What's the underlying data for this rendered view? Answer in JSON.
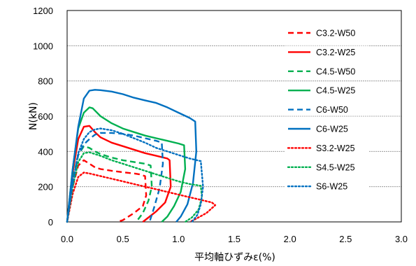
{
  "chart_data": {
    "type": "line",
    "xlabel": "平均軸ひずみε(%)",
    "ylabel": "N(kN)",
    "xlim": [
      0,
      3.0
    ],
    "ylim": [
      0,
      1200
    ],
    "xticks": [
      "0.0",
      "0.5",
      "1.0",
      "1.5",
      "2.0",
      "2.5",
      "3.0"
    ],
    "yticks": [
      "0",
      "200",
      "400",
      "600",
      "800",
      "1000",
      "1200"
    ],
    "grid": "horizontal",
    "legend_position": "right",
    "series": [
      {
        "name": "C3.2-W50",
        "color": "#ff0000",
        "dash": "dashed",
        "x": [
          0,
          0.05,
          0.1,
          0.15,
          0.2,
          0.25,
          0.3,
          0.4,
          0.5,
          0.6,
          0.65,
          0.7,
          0.71,
          0.68,
          0.6,
          0.5,
          0.45
        ],
        "y": [
          0,
          200,
          320,
          350,
          330,
          310,
          300,
          290,
          282,
          275,
          270,
          260,
          150,
          90,
          50,
          10,
          0
        ]
      },
      {
        "name": "C3.2-W25",
        "color": "#ff0000",
        "dash": "solid",
        "x": [
          0,
          0.05,
          0.1,
          0.15,
          0.2,
          0.25,
          0.3,
          0.4,
          0.5,
          0.6,
          0.7,
          0.8,
          0.9,
          0.92,
          0.93,
          0.88,
          0.8,
          0.72,
          0.68
        ],
        "y": [
          0,
          280,
          470,
          540,
          545,
          510,
          480,
          450,
          430,
          410,
          390,
          375,
          360,
          350,
          200,
          110,
          60,
          20,
          0
        ]
      },
      {
        "name": "C4.5-W50",
        "color": "#00b050",
        "dash": "dashed",
        "x": [
          0,
          0.05,
          0.1,
          0.15,
          0.2,
          0.25,
          0.3,
          0.4,
          0.5,
          0.6,
          0.7,
          0.75,
          0.76,
          0.73,
          0.68,
          0.62
        ],
        "y": [
          0,
          240,
          380,
          430,
          420,
          400,
          385,
          365,
          350,
          340,
          330,
          320,
          200,
          120,
          50,
          0
        ]
      },
      {
        "name": "C4.5-W25",
        "color": "#00b050",
        "dash": "solid",
        "x": [
          0,
          0.05,
          0.1,
          0.15,
          0.2,
          0.23,
          0.3,
          0.4,
          0.5,
          0.6,
          0.7,
          0.8,
          0.9,
          1.0,
          1.05,
          1.06,
          1.02,
          0.96,
          0.9,
          0.85
        ],
        "y": [
          0,
          300,
          530,
          620,
          650,
          645,
          600,
          560,
          530,
          510,
          490,
          475,
          460,
          445,
          435,
          300,
          170,
          90,
          30,
          0
        ]
      },
      {
        "name": "C6-W50",
        "color": "#0070c0",
        "dash": "dashed",
        "x": [
          0,
          0.05,
          0.1,
          0.15,
          0.2,
          0.25,
          0.3,
          0.4,
          0.5,
          0.6,
          0.7,
          0.8,
          0.85,
          0.86,
          0.83,
          0.78,
          0.74
        ],
        "y": [
          0,
          220,
          380,
          440,
          470,
          495,
          505,
          505,
          500,
          490,
          475,
          460,
          450,
          330,
          190,
          80,
          0
        ]
      },
      {
        "name": "C6-W25",
        "color": "#0070c0",
        "dash": "solid",
        "x": [
          0,
          0.05,
          0.1,
          0.15,
          0.2,
          0.25,
          0.3,
          0.4,
          0.5,
          0.6,
          0.7,
          0.8,
          0.9,
          1.0,
          1.1,
          1.15,
          1.16,
          1.13,
          1.08,
          1.02,
          0.98
        ],
        "y": [
          0,
          300,
          540,
          700,
          745,
          750,
          748,
          740,
          725,
          705,
          690,
          675,
          650,
          620,
          590,
          570,
          400,
          220,
          100,
          30,
          0
        ]
      },
      {
        "name": "S3.2-W25",
        "color": "#ff0000",
        "dash": "dotted",
        "x": [
          0,
          0.05,
          0.1,
          0.15,
          0.2,
          0.3,
          0.4,
          0.5,
          0.6,
          0.7,
          0.8,
          0.9,
          1.0,
          1.1,
          1.2,
          1.3,
          1.33,
          1.25,
          1.15,
          1.1
        ],
        "y": [
          0,
          160,
          255,
          280,
          275,
          260,
          245,
          230,
          215,
          200,
          185,
          170,
          155,
          140,
          125,
          110,
          95,
          50,
          15,
          0
        ]
      },
      {
        "name": "S4.5-W25",
        "color": "#00b050",
        "dash": "dotted",
        "x": [
          0,
          0.05,
          0.1,
          0.15,
          0.2,
          0.3,
          0.4,
          0.5,
          0.6,
          0.7,
          0.8,
          0.9,
          1.0,
          1.1,
          1.2,
          1.21,
          1.18,
          1.12,
          1.06
        ],
        "y": [
          0,
          200,
          340,
          390,
          395,
          375,
          350,
          330,
          310,
          290,
          270,
          250,
          230,
          215,
          205,
          140,
          70,
          25,
          0
        ]
      },
      {
        "name": "S6-W25",
        "color": "#0070c0",
        "dash": "dotted",
        "x": [
          0,
          0.05,
          0.1,
          0.15,
          0.2,
          0.25,
          0.3,
          0.4,
          0.5,
          0.6,
          0.7,
          0.8,
          0.9,
          1.0,
          1.1,
          1.2,
          1.22,
          1.2,
          1.17,
          1.12
        ],
        "y": [
          0,
          220,
          390,
          470,
          510,
          525,
          530,
          520,
          500,
          475,
          450,
          420,
          400,
          380,
          360,
          345,
          200,
          100,
          40,
          0
        ]
      }
    ]
  }
}
